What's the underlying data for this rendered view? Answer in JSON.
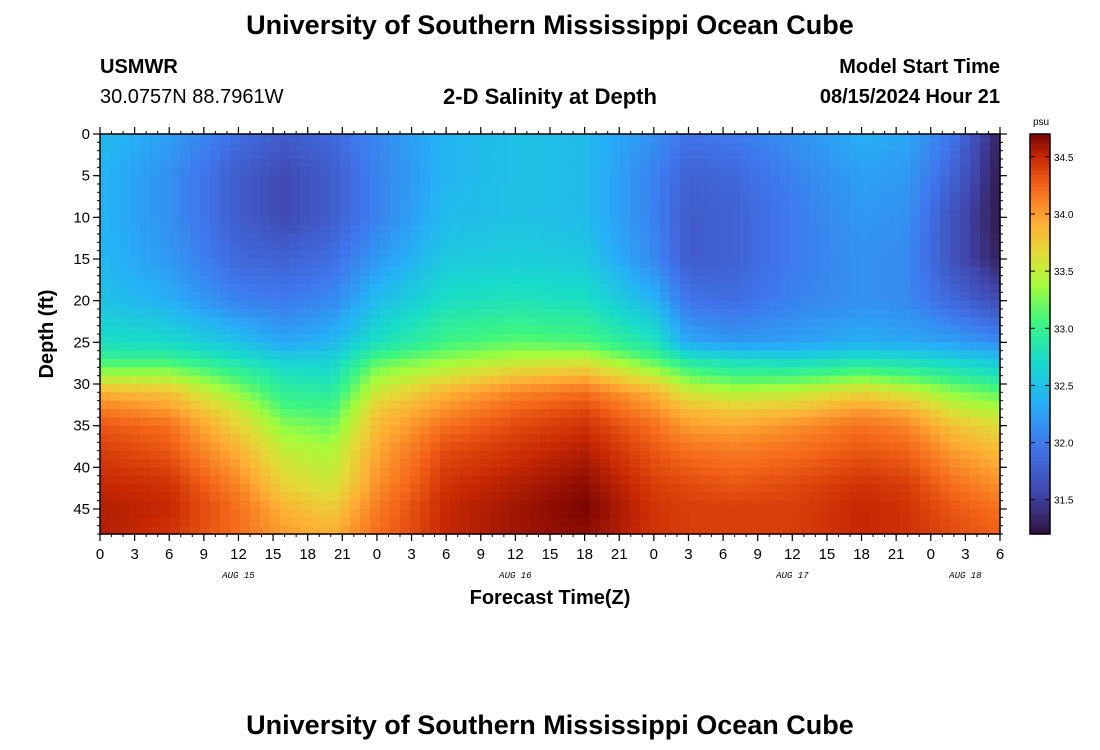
{
  "header": {
    "title": "University of Southern Mississippi Ocean Cube",
    "station_id": "USMWR",
    "coordinates": "30.0757N  88.7961W",
    "subtitle": "2-D Salinity at Depth",
    "model_start_label": "Model Start Time",
    "model_start_value": "08/15/2024 Hour 21"
  },
  "footer": {
    "title": "University of Southern Mississippi Ocean Cube"
  },
  "chart_data": {
    "type": "heatmap",
    "title": "2-D Salinity at Depth",
    "xlabel": "Forecast Time(Z)",
    "ylabel": "Depth (ft)",
    "colorbar_unit": "psu",
    "x_ticks": [
      "0",
      "3",
      "6",
      "9",
      "12",
      "15",
      "18",
      "21",
      "0",
      "3",
      "6",
      "9",
      "12",
      "15",
      "18",
      "21",
      "0",
      "3",
      "6",
      "9",
      "12",
      "15",
      "18",
      "21",
      "0",
      "3",
      "6"
    ],
    "date_labels": [
      {
        "label": "AUG 15",
        "tick_index": 4
      },
      {
        "label": "AUG 16",
        "tick_index": 12
      },
      {
        "label": "AUG 17",
        "tick_index": 20
      },
      {
        "label": "AUG 18",
        "tick_index": 25
      }
    ],
    "x_range_hours": [
      0,
      78
    ],
    "y_ticks": [
      "0",
      "5",
      "10",
      "15",
      "20",
      "25",
      "30",
      "35",
      "40",
      "45"
    ],
    "y_range_ft": [
      0,
      48
    ],
    "colorbar_ticks": [
      "34.5",
      "34.0",
      "33.5",
      "33.0",
      "32.5",
      "32.0",
      "31.5"
    ],
    "colorbar_range": [
      31.2,
      34.7
    ],
    "depth_profile_ft": [
      0,
      5,
      10,
      15,
      20,
      25,
      27,
      29,
      31,
      33,
      35,
      38,
      42,
      45,
      48
    ],
    "columns": [
      {
        "hour": 0,
        "salinity": [
          32.45,
          32.4,
          32.4,
          32.42,
          32.5,
          32.75,
          33.0,
          33.4,
          33.9,
          34.15,
          34.3,
          34.4,
          34.5,
          34.55,
          34.55
        ]
      },
      {
        "hour": 6,
        "salinity": [
          32.25,
          32.15,
          32.15,
          32.2,
          32.35,
          32.7,
          33.0,
          33.4,
          33.8,
          34.0,
          34.2,
          34.3,
          34.45,
          34.5,
          34.45
        ]
      },
      {
        "hour": 12,
        "salinity": [
          31.9,
          31.75,
          31.75,
          31.85,
          32.05,
          32.5,
          32.75,
          33.05,
          33.3,
          33.55,
          33.7,
          33.9,
          34.1,
          34.2,
          34.2
        ]
      },
      {
        "hour": 16,
        "salinity": [
          31.75,
          31.6,
          31.6,
          31.8,
          32.0,
          32.3,
          32.6,
          32.8,
          32.95,
          33.1,
          33.3,
          33.5,
          33.7,
          33.9,
          34.0
        ]
      },
      {
        "hour": 20,
        "salinity": [
          31.85,
          31.75,
          31.75,
          31.9,
          32.1,
          32.4,
          32.6,
          32.75,
          32.9,
          33.05,
          33.2,
          33.4,
          33.55,
          33.75,
          33.9
        ]
      },
      {
        "hour": 24,
        "salinity": [
          32.1,
          32.05,
          32.05,
          32.2,
          32.45,
          32.75,
          33.1,
          33.35,
          33.55,
          33.75,
          33.85,
          33.95,
          34.05,
          34.15,
          34.2
        ]
      },
      {
        "hour": 30,
        "salinity": [
          32.4,
          32.4,
          32.45,
          32.55,
          32.75,
          33.05,
          33.3,
          33.6,
          33.9,
          34.05,
          34.2,
          34.35,
          34.45,
          34.5,
          34.5
        ]
      },
      {
        "hour": 36,
        "salinity": [
          32.5,
          32.5,
          32.5,
          32.6,
          32.8,
          33.15,
          33.45,
          33.8,
          34.1,
          34.25,
          34.35,
          34.45,
          34.55,
          34.6,
          34.6
        ]
      },
      {
        "hour": 42,
        "salinity": [
          32.45,
          32.45,
          32.45,
          32.55,
          32.75,
          33.1,
          33.5,
          33.9,
          34.2,
          34.35,
          34.45,
          34.55,
          34.65,
          34.7,
          34.65
        ]
      },
      {
        "hour": 48,
        "salinity": [
          32.15,
          32.05,
          32.05,
          32.1,
          32.4,
          32.8,
          33.1,
          33.5,
          33.9,
          34.05,
          34.2,
          34.3,
          34.4,
          34.45,
          34.45
        ]
      },
      {
        "hour": 51,
        "salinity": [
          31.95,
          31.8,
          31.75,
          31.75,
          31.95,
          32.3,
          32.8,
          33.2,
          33.55,
          33.85,
          34.0,
          34.2,
          34.35,
          34.4,
          34.4
        ]
      },
      {
        "hour": 55,
        "salinity": [
          32.0,
          31.85,
          31.8,
          31.8,
          31.9,
          32.2,
          32.7,
          33.05,
          33.45,
          33.75,
          33.95,
          34.15,
          34.3,
          34.4,
          34.4
        ]
      },
      {
        "hour": 60,
        "salinity": [
          32.15,
          32.05,
          32.0,
          32.0,
          32.05,
          32.25,
          32.65,
          33.05,
          33.5,
          33.8,
          34.05,
          34.2,
          34.35,
          34.4,
          34.4
        ]
      },
      {
        "hour": 66,
        "salinity": [
          32.35,
          32.25,
          32.2,
          32.15,
          32.15,
          32.35,
          32.75,
          33.2,
          33.7,
          34.0,
          34.2,
          34.3,
          34.45,
          34.5,
          34.5
        ]
      },
      {
        "hour": 70,
        "salinity": [
          32.3,
          32.2,
          32.15,
          32.1,
          32.1,
          32.3,
          32.7,
          33.1,
          33.55,
          33.9,
          34.1,
          34.25,
          34.4,
          34.45,
          34.45
        ]
      },
      {
        "hour": 74,
        "salinity": [
          31.95,
          31.8,
          31.65,
          31.65,
          31.85,
          32.25,
          32.6,
          32.95,
          33.3,
          33.55,
          33.8,
          34.0,
          34.2,
          34.3,
          34.35
        ]
      },
      {
        "hour": 78,
        "salinity": [
          31.3,
          31.25,
          31.25,
          31.3,
          31.6,
          32.1,
          32.5,
          32.8,
          33.15,
          33.4,
          33.65,
          33.85,
          34.05,
          34.2,
          34.25
        ]
      }
    ]
  }
}
